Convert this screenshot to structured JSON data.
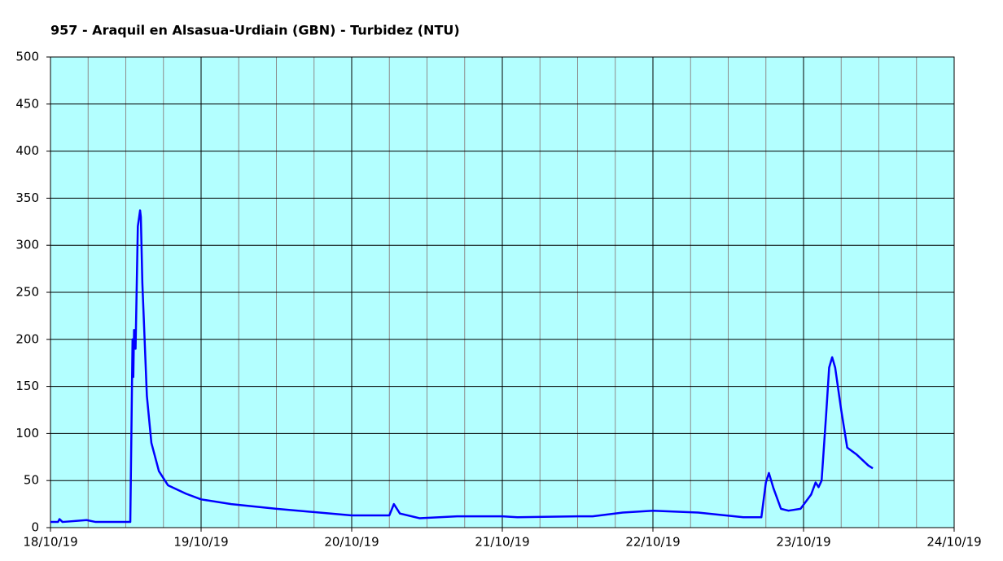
{
  "chart_data": {
    "type": "line",
    "title": "957 - Araquil en Alsasua-Urdiain (GBN) - Turbidez (NTU)",
    "x": [
      0,
      0.05,
      0.06,
      0.08,
      0.24,
      0.3,
      0.53,
      0.545,
      0.55,
      0.555,
      0.565,
      0.58,
      0.595,
      0.6,
      0.61,
      0.625,
      0.64,
      0.67,
      0.72,
      0.78,
      0.9,
      1.0,
      1.2,
      1.5,
      2.0,
      2.25,
      2.28,
      2.32,
      2.45,
      2.7,
      3.0,
      3.1,
      3.5,
      3.6,
      3.8,
      4.0,
      4.3,
      4.6,
      4.72,
      4.75,
      4.77,
      4.8,
      4.85,
      4.9,
      4.98,
      5.05,
      5.08,
      5.1,
      5.12,
      5.15,
      5.17,
      5.19,
      5.21,
      5.25,
      5.29,
      5.35,
      5.43,
      5.46
    ],
    "series": [
      {
        "name": "Turbidez",
        "color": "#0000ff",
        "values": [
          6,
          6,
          9,
          6,
          8,
          6,
          6,
          200,
          160,
          210,
          190,
          320,
          337,
          330,
          260,
          200,
          140,
          90,
          60,
          45,
          36,
          30,
          25,
          20,
          13,
          13,
          25,
          15,
          10,
          12,
          12,
          11,
          12,
          12,
          16,
          18,
          16,
          11,
          11,
          48,
          58,
          42,
          20,
          18,
          20,
          35,
          48,
          43,
          50,
          120,
          170,
          181,
          170,
          125,
          85,
          78,
          66,
          63
        ]
      }
    ],
    "xlim": [
      0,
      6
    ],
    "xticks": [
      {
        "value": 0,
        "label": "18/10/19"
      },
      {
        "value": 1,
        "label": "19/10/19"
      },
      {
        "value": 2,
        "label": "20/10/19"
      },
      {
        "value": 3,
        "label": "21/10/19"
      },
      {
        "value": 4,
        "label": "22/10/19"
      },
      {
        "value": 5,
        "label": "23/10/19"
      },
      {
        "value": 6,
        "label": "24/10/19"
      }
    ],
    "ylim": [
      0,
      500
    ],
    "yticks": [
      0,
      50,
      100,
      150,
      200,
      250,
      300,
      350,
      400,
      450,
      500
    ],
    "grid": true,
    "background": "#b3ffff"
  }
}
